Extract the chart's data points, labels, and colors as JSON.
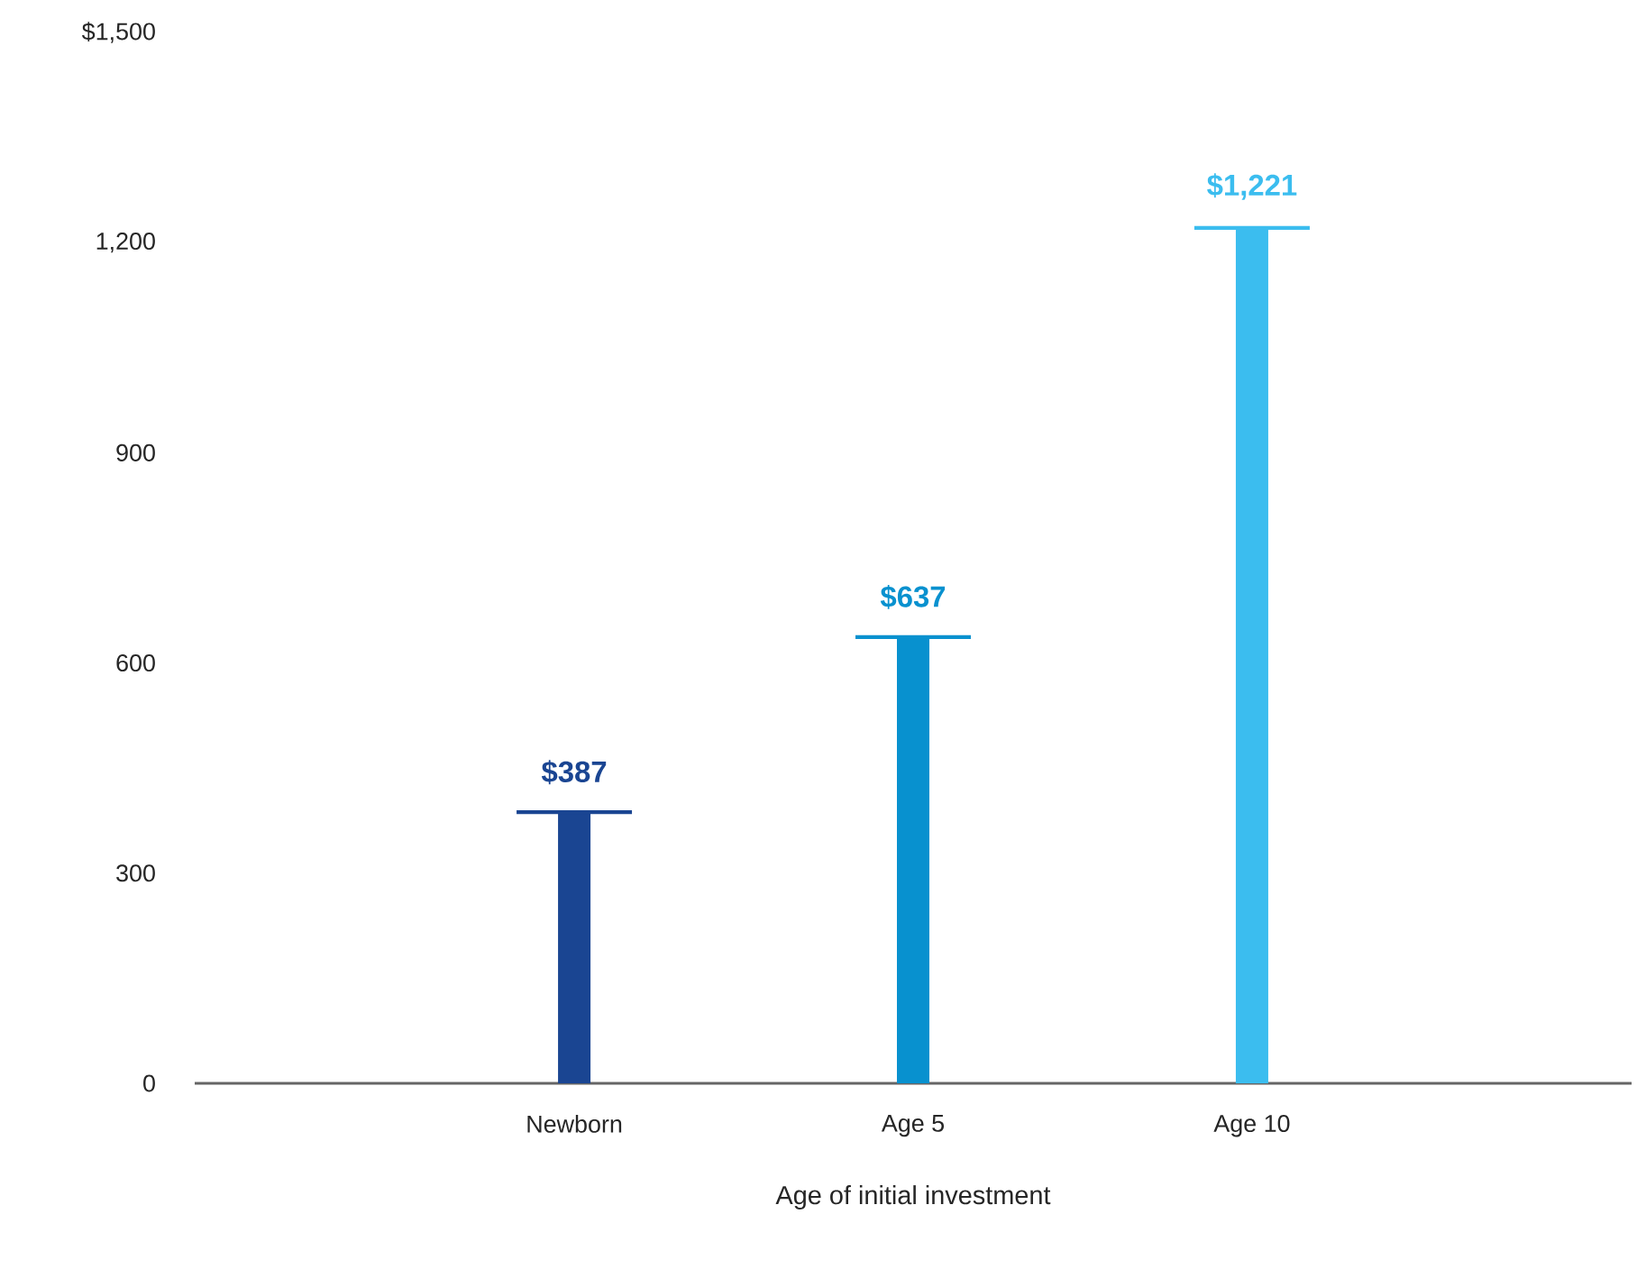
{
  "chart_data": {
    "type": "bar",
    "xlabel": "Age of initial investment",
    "categories": [
      "Newborn",
      "Age 5",
      "Age 10"
    ],
    "values": [
      387,
      637,
      1221
    ],
    "value_labels": [
      "$387",
      "$637",
      "$1,221"
    ],
    "colors": [
      "#1a4592",
      "#0891cf",
      "#3bbdef"
    ],
    "ylim": [
      0,
      1500
    ],
    "yticks": [
      0,
      300,
      600,
      900,
      {
        "value": 1200,
        "label": "1,200"
      },
      {
        "value": 1500,
        "label": "$1,500"
      }
    ]
  }
}
